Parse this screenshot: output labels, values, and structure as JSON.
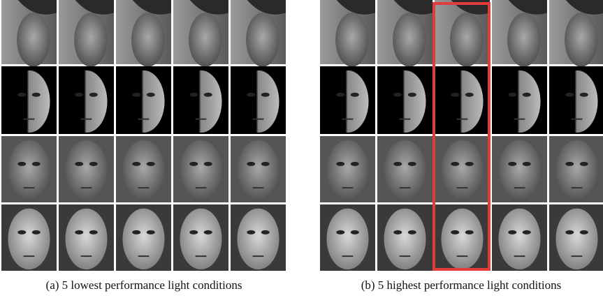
{
  "panels": [
    {
      "caption": "(a) 5 lowest performance light conditions"
    },
    {
      "caption": "(b) 5 highest performance light conditions"
    }
  ]
}
